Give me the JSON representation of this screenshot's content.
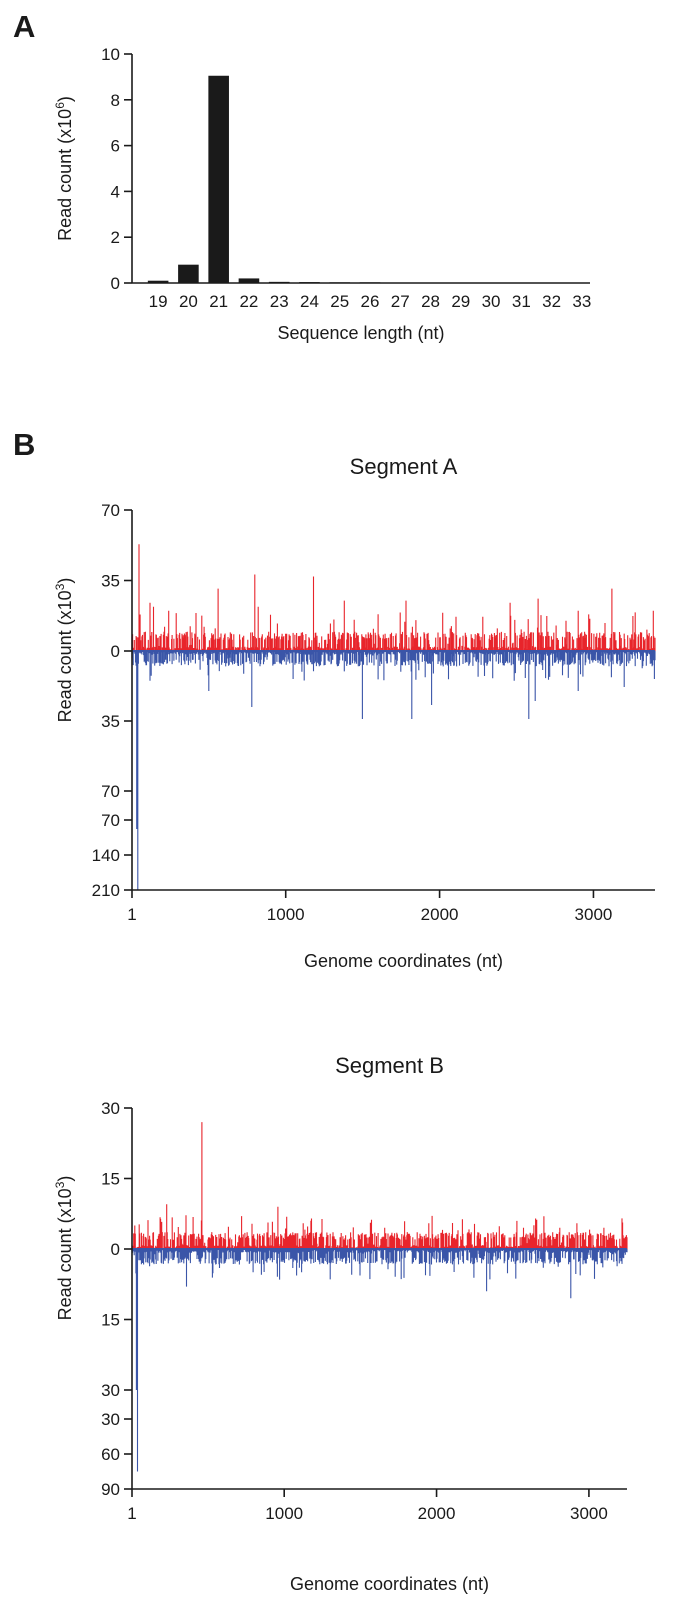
{
  "panels": {
    "a": "A",
    "b": "B"
  },
  "colors": {
    "bar": "#1a1a1a",
    "plus": "#e8242b",
    "minus": "#3a55a8",
    "axis": "#1a1a1a"
  },
  "chart_data": [
    {
      "type": "bar",
      "categories": [
        "19",
        "20",
        "21",
        "22",
        "23",
        "24",
        "25",
        "26",
        "27",
        "28",
        "29",
        "30",
        "31",
        "32",
        "33"
      ],
      "values": [
        0.1,
        0.8,
        9.05,
        0.2,
        0.05,
        0.04,
        0.03,
        0.03,
        0,
        0,
        0,
        0,
        0,
        0,
        0
      ],
      "xlabel": "Sequence length (nt)",
      "ylabel_main": "Read count (x10",
      "ylabel_sup": "6",
      "ylabel_end": ")",
      "ylim": [
        0,
        10
      ],
      "yticks": [
        "0",
        "2",
        "4",
        "6",
        "8",
        "10"
      ]
    },
    {
      "type": "line",
      "title": "Segment A",
      "xlabel": "Genome coordinates (nt)",
      "ylabel_main": "Read count (x10",
      "ylabel_sup": "3",
      "ylabel_end": ")",
      "xlim": [
        1,
        3400
      ],
      "xticks": [
        "1",
        "1000",
        "2000",
        "3000"
      ],
      "yticks_upper": [
        "70",
        "35",
        "0",
        "35",
        "70"
      ],
      "yticks_lower": [
        "70",
        "140",
        "210"
      ],
      "upper_scale": 70,
      "lower_scale": 210,
      "upper_limit": 70,
      "lower_limit": 210,
      "seed": 17,
      "peaks_plus": [
        [
          45,
          53
        ],
        [
          120,
          24
        ],
        [
          240,
          20
        ],
        [
          560,
          31
        ],
        [
          800,
          38
        ],
        [
          820,
          22
        ],
        [
          1180,
          37
        ],
        [
          1380,
          25
        ],
        [
          1780,
          25
        ],
        [
          2020,
          19
        ],
        [
          2280,
          17
        ],
        [
          2460,
          24
        ],
        [
          2640,
          26
        ],
        [
          3120,
          31
        ],
        [
          3390,
          20
        ],
        [
          140,
          22
        ],
        [
          900,
          18
        ],
        [
          2900,
          20
        ]
      ],
      "peaks_minus": [
        [
          38,
          210
        ],
        [
          30,
          88
        ],
        [
          500,
          20
        ],
        [
          780,
          28
        ],
        [
          1500,
          34
        ],
        [
          1820,
          34
        ],
        [
          1950,
          27
        ],
        [
          2580,
          34
        ],
        [
          2620,
          25
        ],
        [
          2900,
          20
        ],
        [
          1050,
          14
        ],
        [
          3200,
          18
        ]
      ],
      "base_plus": 8,
      "base_minus": 7
    },
    {
      "type": "line",
      "title": "Segment B",
      "xlabel": "Genome coordinates (nt)",
      "ylabel_main": "Read count (x10",
      "ylabel_sup": "3",
      "ylabel_end": ")",
      "xlim": [
        1,
        3250
      ],
      "xticks": [
        "1",
        "1000",
        "2000",
        "3000"
      ],
      "yticks_upper": [
        "30",
        "15",
        "0",
        "15",
        "30"
      ],
      "yticks_lower": [
        "30",
        "60",
        "90"
      ],
      "upper_scale": 30,
      "lower_scale": 90,
      "upper_limit": 30,
      "lower_limit": 90,
      "seed": 53,
      "peaks_plus": [
        [
          230,
          9.5
        ],
        [
          460,
          27
        ],
        [
          720,
          7
        ],
        [
          960,
          9
        ],
        [
          1180,
          6.5
        ],
        [
          1950,
          5.5
        ],
        [
          2650,
          6.5
        ],
        [
          2920,
          5.5
        ],
        [
          3100,
          4.5
        ],
        [
          20,
          5
        ]
      ],
      "peaks_minus": [
        [
          38,
          75
        ],
        [
          30,
          30
        ],
        [
          360,
          8
        ],
        [
          850,
          5.5
        ],
        [
          2330,
          9
        ],
        [
          2880,
          10.5
        ],
        [
          1100,
          4
        ],
        [
          2700,
          4
        ]
      ],
      "base_plus": 3,
      "base_minus": 3
    }
  ]
}
